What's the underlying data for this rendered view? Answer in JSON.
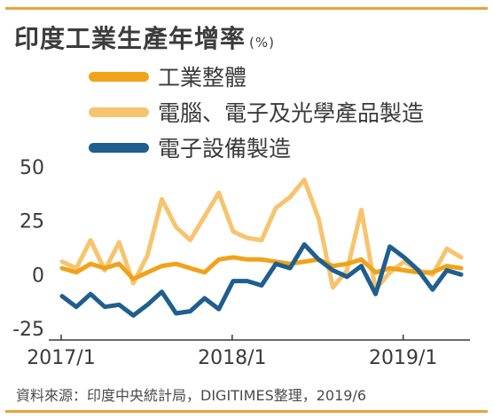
{
  "title": "印度工業生產年增率",
  "unit": "(%)",
  "source": "資料來源：印度中央統計局，DIGITIMES整理，2019/6",
  "colors": {
    "rule": "#e9a23b"
  },
  "chart_data": {
    "type": "line",
    "title": "印度工業生產年增率",
    "ylabel": "(%)",
    "ylim": [
      -25,
      50
    ],
    "yticks": [
      "50",
      "25",
      "0",
      "-25"
    ],
    "ytick_values": [
      50,
      25,
      0,
      -25
    ],
    "xtick_labels": [
      "2017/1",
      "2018/1",
      "2019/1"
    ],
    "xtick_index": [
      0,
      12,
      24
    ],
    "grid": false,
    "legend_position": "top",
    "x": [
      "2017/1",
      "2017/2",
      "2017/3",
      "2017/4",
      "2017/5",
      "2017/6",
      "2017/7",
      "2017/8",
      "2017/9",
      "2017/10",
      "2017/11",
      "2017/12",
      "2018/1",
      "2018/2",
      "2018/3",
      "2018/4",
      "2018/5",
      "2018/6",
      "2018/7",
      "2018/8",
      "2018/9",
      "2018/10",
      "2018/11",
      "2018/12",
      "2019/1",
      "2019/2",
      "2019/3",
      "2019/4",
      "2019/5"
    ],
    "series": [
      {
        "name": "工業整體",
        "color": "#f0a319",
        "values": [
          3,
          1,
          5,
          3,
          5,
          -2,
          1,
          4,
          5,
          3,
          1,
          7,
          8,
          7,
          7,
          6,
          5,
          6,
          7,
          4,
          5,
          7,
          1,
          3,
          2,
          1,
          1,
          4,
          3
        ]
      },
      {
        "name": "電腦、電子及光學產品製造",
        "color": "#f7c46e",
        "values": [
          6,
          3,
          16,
          2,
          15,
          -4,
          9,
          35,
          22,
          16,
          27,
          38,
          20,
          17,
          16,
          31,
          36,
          44,
          26,
          -6,
          2,
          30,
          -7,
          1,
          6,
          2,
          0,
          12,
          8
        ]
      },
      {
        "name": "電子設備製造",
        "color": "#1f5e8e",
        "values": [
          -10,
          -15,
          -9,
          -15,
          -14,
          -19,
          -14,
          -8,
          -18,
          -17,
          -11,
          -16,
          -3,
          -3,
          -5,
          5,
          3,
          14,
          7,
          2,
          -1,
          4,
          -9,
          13,
          8,
          2,
          -7,
          2,
          0
        ]
      }
    ]
  }
}
